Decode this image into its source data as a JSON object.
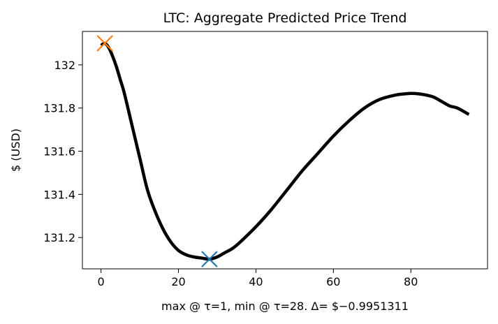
{
  "chart_data": {
    "type": "line",
    "title": "LTC: Aggregate Predicted Price Trend",
    "xlabel": "max @ τ=1, min @ τ=28. Δ= $−0.9951311",
    "ylabel": "$ (USD)",
    "xlim": [
      -4.8,
      99.8
    ],
    "ylim": [
      131.055,
      132.155
    ],
    "x_ticks": [
      0,
      20,
      40,
      60,
      80
    ],
    "x_tick_labels": [
      "0",
      "20",
      "40",
      "60",
      "80"
    ],
    "y_ticks": [
      131.2,
      131.4,
      131.6,
      131.8,
      132.0
    ],
    "y_tick_labels": [
      "131.2",
      "131.4",
      "131.6",
      "131.8",
      "132"
    ],
    "grid": false,
    "series": [
      {
        "color": "#000000",
        "x": [
          0,
          1,
          2,
          3,
          4,
          5,
          6,
          8,
          10,
          12,
          14,
          16,
          18,
          20,
          22,
          24,
          26,
          28,
          30,
          32,
          34,
          36,
          40,
          44,
          48,
          52,
          56,
          60,
          64,
          68,
          72,
          76,
          78,
          80,
          82,
          84,
          86,
          88,
          90,
          92,
          95
        ],
        "y": [
          132.09,
          132.1,
          132.08,
          132.04,
          131.99,
          131.93,
          131.87,
          131.72,
          131.57,
          131.42,
          131.32,
          131.24,
          131.18,
          131.14,
          131.12,
          131.11,
          131.105,
          131.1,
          131.11,
          131.13,
          131.15,
          131.18,
          131.25,
          131.33,
          131.42,
          131.51,
          131.59,
          131.67,
          131.74,
          131.8,
          131.84,
          131.86,
          131.865,
          131.868,
          131.866,
          131.86,
          131.85,
          131.83,
          131.81,
          131.8,
          131.77
        ]
      }
    ],
    "markers": [
      {
        "label": "max",
        "x": 1,
        "y": 132.1,
        "color": "#ff7f0e",
        "symbol": "x"
      },
      {
        "label": "min",
        "x": 28,
        "y": 131.1,
        "color": "#1f77b4",
        "symbol": "x"
      }
    ]
  }
}
